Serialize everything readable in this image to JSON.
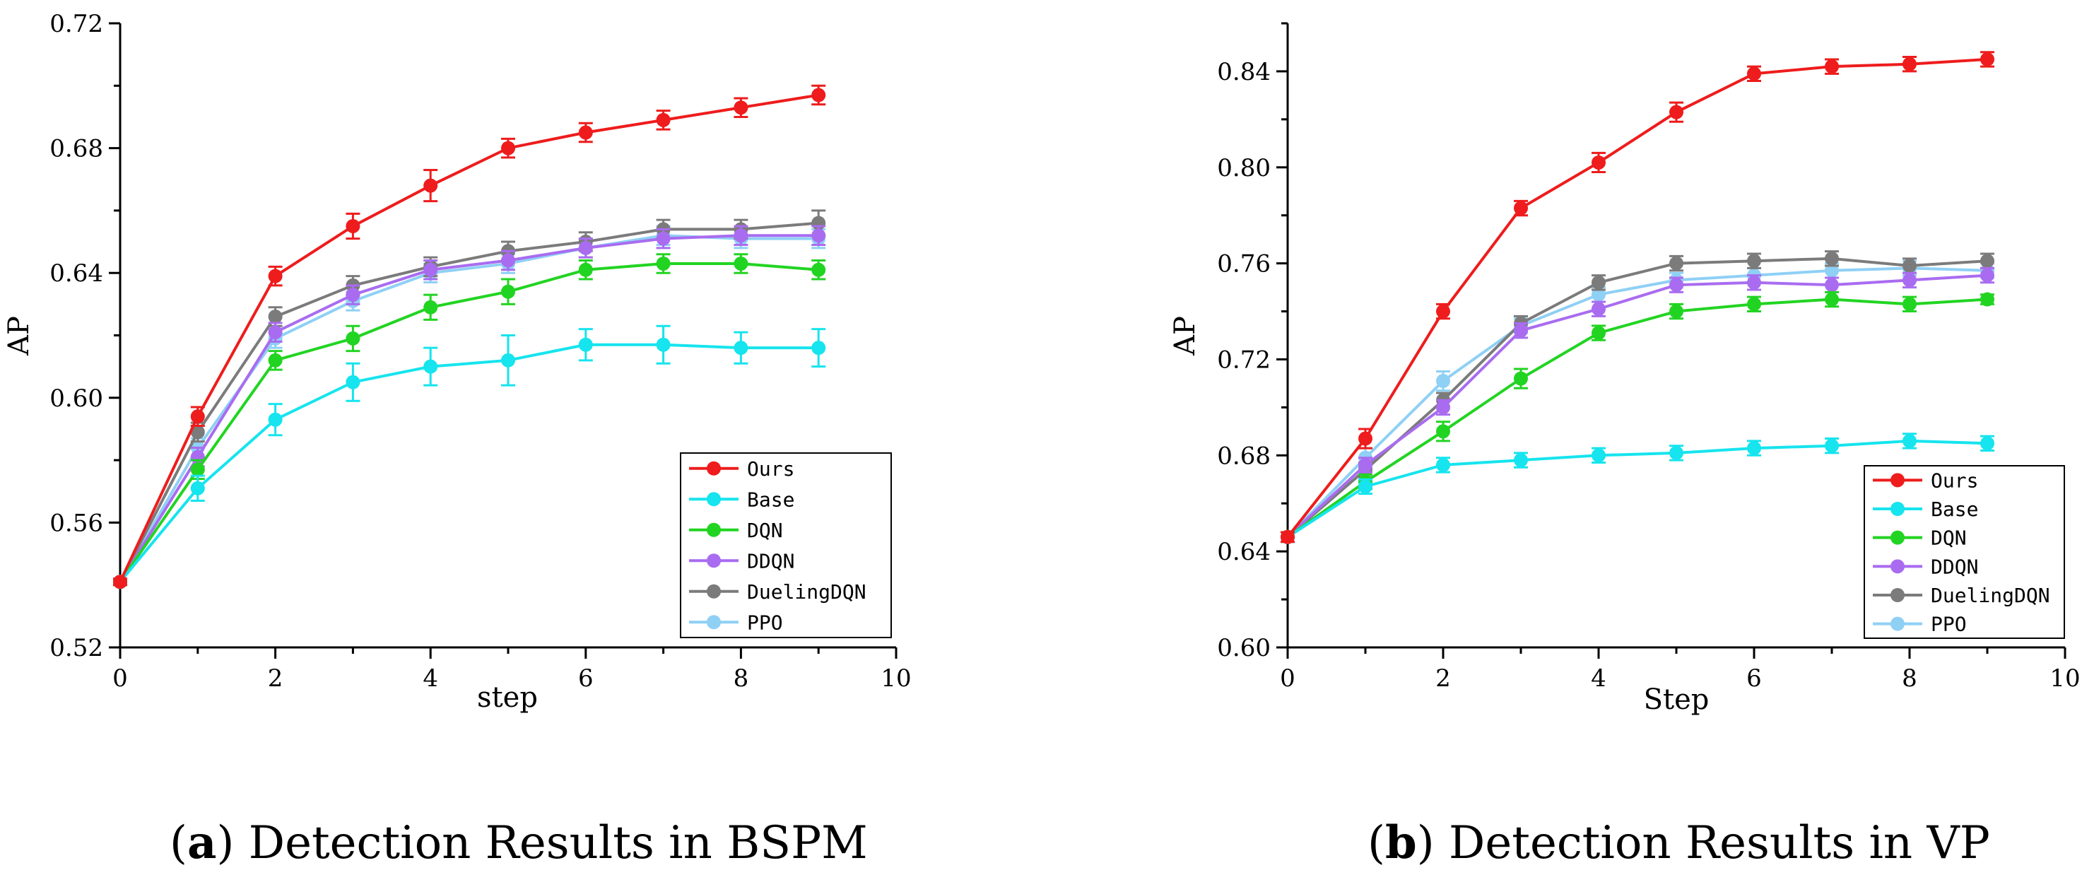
{
  "chart_data": [
    {
      "type": "line",
      "panel_label": "(a)",
      "caption_letter": "a",
      "title": "Detection Results in BSPM",
      "xlabel": "step",
      "ylabel": "AP",
      "xlim": [
        0,
        10
      ],
      "ylim": [
        0.52,
        0.72
      ],
      "xticks": [
        0,
        2,
        4,
        6,
        8,
        10
      ],
      "yticks": [
        0.52,
        0.56,
        0.6,
        0.64,
        0.68,
        0.72
      ],
      "ytick_labels": [
        "0.52",
        "0.56",
        "0.60",
        "0.64",
        "0.68",
        "0.72"
      ],
      "legend_position": "bottom-right",
      "x": [
        0,
        1,
        2,
        3,
        4,
        5,
        6,
        7,
        8,
        9
      ],
      "series": [
        {
          "name": "Ours",
          "color": "#ee1c1c",
          "values": [
            0.541,
            0.594,
            0.639,
            0.655,
            0.668,
            0.68,
            0.685,
            0.689,
            0.693,
            0.697
          ],
          "errors": [
            0.001,
            0.003,
            0.003,
            0.004,
            0.005,
            0.003,
            0.003,
            0.003,
            0.003,
            0.003
          ]
        },
        {
          "name": "Base",
          "color": "#16e4ee",
          "values": [
            0.541,
            0.571,
            0.593,
            0.605,
            0.61,
            0.612,
            0.617,
            0.617,
            0.616,
            0.616
          ],
          "errors": [
            0.001,
            0.004,
            0.005,
            0.006,
            0.006,
            0.008,
            0.005,
            0.006,
            0.005,
            0.006
          ]
        },
        {
          "name": "DQN",
          "color": "#22d422",
          "values": [
            0.541,
            0.577,
            0.612,
            0.619,
            0.629,
            0.634,
            0.641,
            0.643,
            0.643,
            0.641
          ],
          "errors": [
            0.001,
            0.003,
            0.003,
            0.004,
            0.004,
            0.004,
            0.003,
            0.003,
            0.003,
            0.003
          ]
        },
        {
          "name": "DDQN",
          "color": "#a96cf0",
          "values": [
            0.541,
            0.581,
            0.621,
            0.633,
            0.641,
            0.644,
            0.648,
            0.651,
            0.652,
            0.652
          ],
          "errors": [
            0.001,
            0.003,
            0.003,
            0.003,
            0.003,
            0.003,
            0.003,
            0.003,
            0.003,
            0.003
          ]
        },
        {
          "name": "DuelingDQN",
          "color": "#7b7b7b",
          "values": [
            0.541,
            0.589,
            0.626,
            0.636,
            0.642,
            0.647,
            0.65,
            0.654,
            0.654,
            0.656
          ],
          "errors": [
            0.001,
            0.003,
            0.003,
            0.003,
            0.003,
            0.003,
            0.003,
            0.003,
            0.003,
            0.004
          ]
        },
        {
          "name": "PPO",
          "color": "#8fd0f5",
          "values": [
            0.541,
            0.584,
            0.619,
            0.631,
            0.64,
            0.643,
            0.648,
            0.652,
            0.651,
            0.651
          ],
          "errors": [
            0.001,
            0.003,
            0.003,
            0.003,
            0.003,
            0.003,
            0.003,
            0.003,
            0.003,
            0.003
          ]
        }
      ]
    },
    {
      "type": "line",
      "panel_label": "(b)",
      "caption_letter": "b",
      "title": "Detection Results in VP",
      "xlabel": "Step",
      "ylabel": "AP",
      "xlim": [
        0,
        10
      ],
      "ylim": [
        0.6,
        0.86
      ],
      "xticks": [
        0,
        2,
        4,
        6,
        8,
        10
      ],
      "yticks": [
        0.6,
        0.64,
        0.68,
        0.72,
        0.76,
        0.8,
        0.84
      ],
      "ytick_labels": [
        "0.60",
        "0.64",
        "0.68",
        "0.72",
        "0.76",
        "0.80",
        "0.84"
      ],
      "legend_position": "bottom-right",
      "x": [
        0,
        1,
        2,
        3,
        4,
        5,
        6,
        7,
        8,
        9
      ],
      "series": [
        {
          "name": "Ours",
          "color": "#ee1c1c",
          "values": [
            0.646,
            0.687,
            0.74,
            0.783,
            0.802,
            0.823,
            0.839,
            0.842,
            0.843,
            0.845
          ],
          "errors": [
            0.002,
            0.004,
            0.003,
            0.003,
            0.004,
            0.004,
            0.003,
            0.003,
            0.003,
            0.003
          ]
        },
        {
          "name": "Base",
          "color": "#16e4ee",
          "values": [
            0.646,
            0.667,
            0.676,
            0.678,
            0.68,
            0.681,
            0.683,
            0.684,
            0.686,
            0.685
          ],
          "errors": [
            0.002,
            0.003,
            0.003,
            0.003,
            0.003,
            0.003,
            0.003,
            0.003,
            0.003,
            0.003
          ]
        },
        {
          "name": "DQN",
          "color": "#22d422",
          "values": [
            0.646,
            0.669,
            0.69,
            0.712,
            0.731,
            0.74,
            0.743,
            0.745,
            0.743,
            0.745
          ],
          "errors": [
            0.002,
            0.003,
            0.004,
            0.004,
            0.003,
            0.003,
            0.003,
            0.003,
            0.003,
            0.002
          ]
        },
        {
          "name": "DDQN",
          "color": "#a96cf0",
          "values": [
            0.646,
            0.676,
            0.7,
            0.732,
            0.741,
            0.751,
            0.752,
            0.751,
            0.753,
            0.755
          ],
          "errors": [
            0.002,
            0.003,
            0.003,
            0.003,
            0.003,
            0.003,
            0.003,
            0.003,
            0.003,
            0.003
          ]
        },
        {
          "name": "DuelingDQN",
          "color": "#7b7b7b",
          "values": [
            0.646,
            0.674,
            0.703,
            0.735,
            0.752,
            0.76,
            0.761,
            0.762,
            0.759,
            0.761
          ],
          "errors": [
            0.002,
            0.003,
            0.003,
            0.003,
            0.003,
            0.003,
            0.003,
            0.003,
            0.003,
            0.003
          ]
        },
        {
          "name": "PPO",
          "color": "#8fd0f5",
          "values": [
            0.646,
            0.679,
            0.711,
            0.734,
            0.747,
            0.753,
            0.755,
            0.757,
            0.758,
            0.757
          ],
          "errors": [
            0.002,
            0.004,
            0.004,
            0.003,
            0.003,
            0.003,
            0.003,
            0.003,
            0.003,
            0.003
          ]
        }
      ]
    }
  ]
}
